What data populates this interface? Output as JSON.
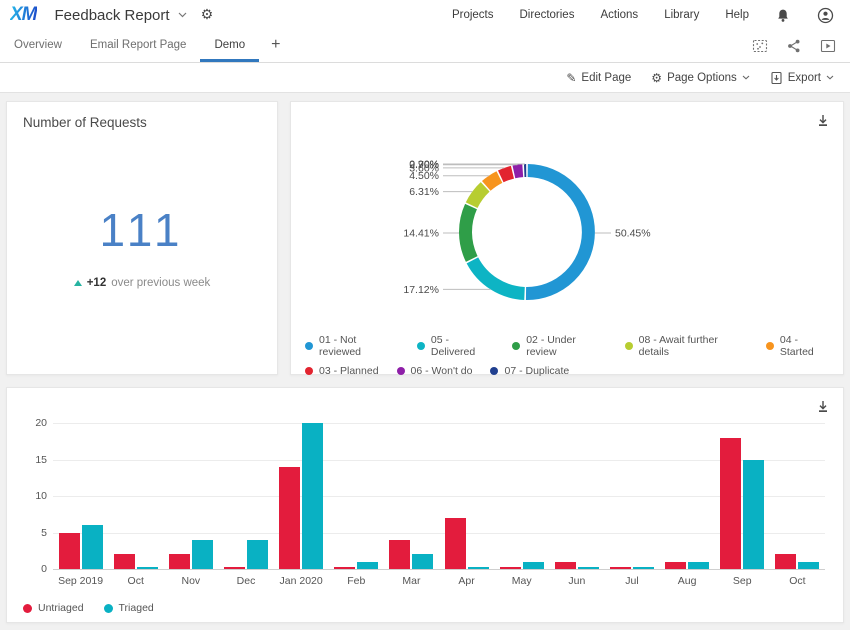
{
  "header": {
    "logo": "XM",
    "title": "Feedback Report",
    "nav": [
      "Projects",
      "Directories",
      "Actions",
      "Library",
      "Help"
    ]
  },
  "tabs": {
    "items": [
      {
        "label": "Overview",
        "active": false
      },
      {
        "label": "Email Report Page",
        "active": false
      },
      {
        "label": "Demo",
        "active": true
      }
    ],
    "add_button": "+"
  },
  "toolbar": {
    "edit_page": "Edit Page",
    "page_options": "Page Options",
    "export": "Export"
  },
  "requests_widget": {
    "title": "Number of Requests",
    "value": "111",
    "delta": "+12",
    "delta_text": "over previous week",
    "value_color": "#4a81c6",
    "delta_color": "#26b3a1"
  },
  "chart_data": [
    {
      "type": "pie",
      "donut": true,
      "segments": [
        {
          "label": "01 - Not reviewed",
          "value": 50.45,
          "display": "50.45%",
          "color": "#2196d4"
        },
        {
          "label": "05 - Delivered",
          "value": 17.12,
          "display": "17.12%",
          "color": "#0db4c4"
        },
        {
          "label": "02 - Under review",
          "value": 14.41,
          "display": "14.41%",
          "color": "#2f9e48"
        },
        {
          "label": "08 - Await further details",
          "value": 6.31,
          "display": "6.31%",
          "color": "#b7cd31"
        },
        {
          "label": "04 - Started",
          "value": 4.5,
          "display": "4.50%",
          "color": "#f7941e"
        },
        {
          "label": "03 - Planned",
          "value": 3.6,
          "display": "3.60%",
          "color": "#e2242f"
        },
        {
          "label": "06 - Won't do",
          "value": 2.7,
          "display": "2.70%",
          "color": "#8e1fa8"
        },
        {
          "label": "07 - Duplicate",
          "value": 0.9,
          "display": "0.90%",
          "color": "#203f8f"
        }
      ],
      "legend_rows": [
        [
          0,
          1,
          2,
          3,
          4
        ],
        [
          5,
          6,
          7
        ]
      ],
      "legend_position": "bottom"
    },
    {
      "type": "bar",
      "categories": [
        "Sep 2019",
        "Oct",
        "Nov",
        "Dec",
        "Jan 2020",
        "Feb",
        "Mar",
        "Apr",
        "May",
        "Jun",
        "Jul",
        "Aug",
        "Sep",
        "Oct"
      ],
      "series": [
        {
          "name": "Untriaged",
          "color": "#e31c3d",
          "values": [
            5,
            2,
            2,
            0,
            14,
            0,
            4,
            7,
            0,
            1,
            0,
            1,
            18,
            2
          ]
        },
        {
          "name": "Triaged",
          "color": "#09b1c3",
          "values": [
            6,
            0,
            4,
            4,
            20,
            1,
            2,
            0,
            1,
            0,
            0,
            1,
            15,
            1
          ]
        }
      ],
      "ylim": [
        0,
        20
      ],
      "yticks": [
        0,
        5,
        10,
        15,
        20
      ],
      "grid": true,
      "legend_position": "bottom-left"
    }
  ]
}
